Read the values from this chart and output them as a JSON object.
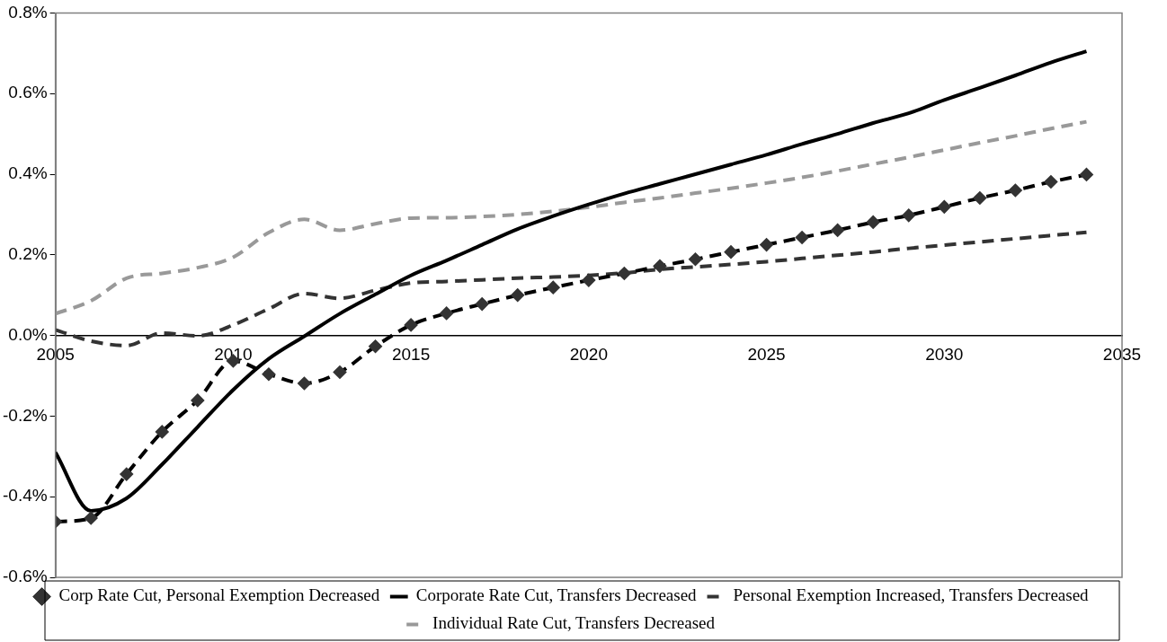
{
  "chart_data": {
    "type": "line",
    "x": [
      2005,
      2006,
      2007,
      2008,
      2009,
      2010,
      2011,
      2012,
      2013,
      2014,
      2015,
      2016,
      2017,
      2018,
      2019,
      2020,
      2021,
      2022,
      2023,
      2024,
      2025,
      2026,
      2027,
      2028,
      2029,
      2030,
      2031,
      2032,
      2033,
      2034
    ],
    "series": [
      {
        "name": "Corp Rate Cut, Personal Exemption Decreased",
        "color": "#000000",
        "line_style": "dashed",
        "marker": "diamond",
        "values": [
          -0.462,
          -0.453,
          -0.344,
          -0.239,
          -0.161,
          -0.063,
          -0.096,
          -0.119,
          -0.091,
          -0.027,
          0.026,
          0.055,
          0.078,
          0.1,
          0.119,
          0.137,
          0.154,
          0.172,
          0.189,
          0.207,
          0.225,
          0.243,
          0.261,
          0.281,
          0.298,
          0.319,
          0.341,
          0.36,
          0.381,
          0.399
        ]
      },
      {
        "name": "Corporate Rate Cut, Transfers Decreased",
        "color": "#000000",
        "line_style": "solid",
        "marker": "none",
        "values": [
          -0.29,
          -0.435,
          -0.404,
          -0.32,
          -0.227,
          -0.135,
          -0.058,
          -0.002,
          0.054,
          0.102,
          0.149,
          0.186,
          0.225,
          0.264,
          0.296,
          0.325,
          0.352,
          0.376,
          0.4,
          0.424,
          0.448,
          0.475,
          0.5,
          0.527,
          0.551,
          0.584,
          0.614,
          0.645,
          0.677,
          0.705
        ]
      },
      {
        "name": "Personal Exemption Increased, Transfers Decreased",
        "color": "#333333",
        "line_style": "dashed",
        "marker": "none",
        "values": [
          0.014,
          -0.014,
          -0.025,
          0.006,
          -0.001,
          0.026,
          0.066,
          0.104,
          0.092,
          0.112,
          0.13,
          0.134,
          0.138,
          0.142,
          0.145,
          0.149,
          0.155,
          0.164,
          0.17,
          0.176,
          0.183,
          0.191,
          0.199,
          0.207,
          0.216,
          0.224,
          0.232,
          0.24,
          0.248,
          0.256
        ]
      },
      {
        "name": "Individual Rate Cut, Transfers Decreased",
        "color": "#999999",
        "line_style": "dashed",
        "marker": "none",
        "values": [
          0.054,
          0.086,
          0.142,
          0.154,
          0.168,
          0.194,
          0.255,
          0.288,
          0.261,
          0.277,
          0.291,
          0.292,
          0.295,
          0.3,
          0.308,
          0.318,
          0.33,
          0.341,
          0.353,
          0.365,
          0.378,
          0.392,
          0.408,
          0.425,
          0.442,
          0.46,
          0.478,
          0.495,
          0.513,
          0.53
        ]
      }
    ],
    "xlim": [
      2005,
      2035
    ],
    "xticks": [
      2005,
      2010,
      2015,
      2020,
      2025,
      2030,
      2035
    ],
    "ylim": [
      -0.6,
      0.8
    ],
    "yticks": [
      {
        "value": -0.6,
        "label": "-0.6%"
      },
      {
        "value": -0.4,
        "label": "-0.4%"
      },
      {
        "value": -0.2,
        "label": "-0.2%"
      },
      {
        "value": 0,
        "label": "0.0%"
      },
      {
        "value": 0.2,
        "label": "0.2%"
      },
      {
        "value": 0.4,
        "label": "0.4%"
      },
      {
        "value": 0.6,
        "label": "0.6%"
      },
      {
        "value": 0.8,
        "label": "0.8%"
      }
    ],
    "grid": false,
    "legend": "bottom"
  }
}
